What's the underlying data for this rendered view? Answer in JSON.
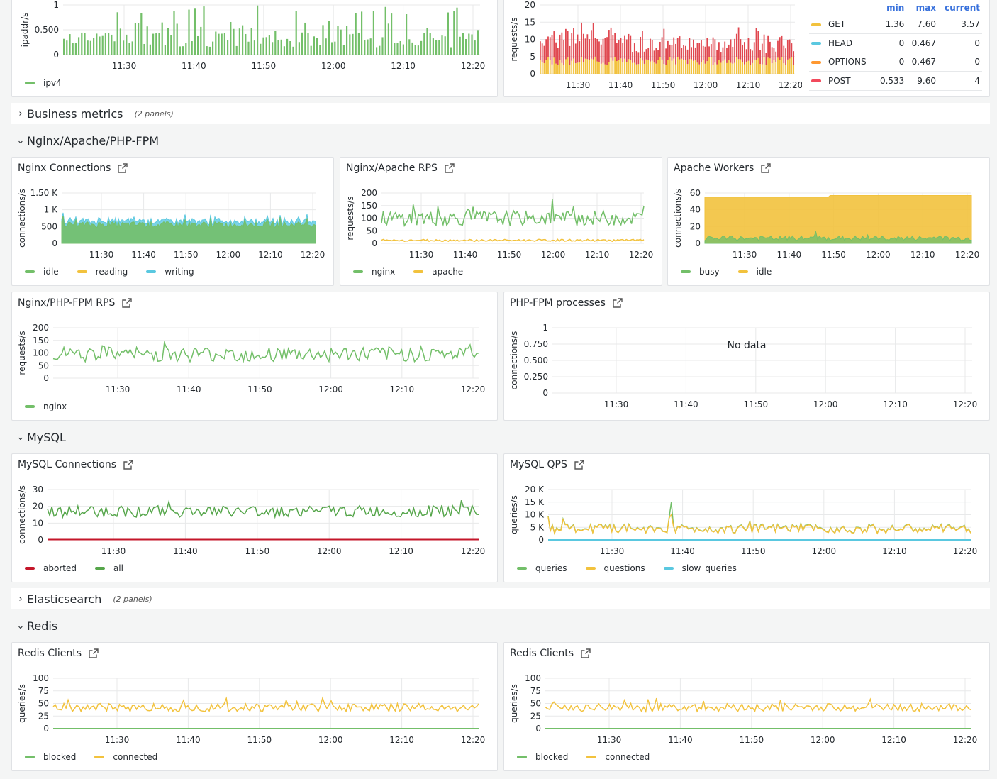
{
  "panels": {
    "ipaddr": {
      "ylabel": "ipaddr/s",
      "yticks": [
        "1",
        "0.500",
        "0"
      ],
      "xticks": [
        "11:30",
        "11:40",
        "11:50",
        "12:00",
        "12:10",
        "12:20"
      ],
      "legend": [
        {
          "name": "ipv4",
          "color": "#73bf69"
        }
      ]
    },
    "http_methods": {
      "ylabel": "requests/s",
      "yticks": [
        "20",
        "15",
        "10",
        "5",
        "0"
      ],
      "xticks": [
        "11:30",
        "11:40",
        "11:50",
        "12:00",
        "12:10",
        "12:20"
      ],
      "table_headers": {
        "min": "min",
        "max": "max",
        "current": "current"
      },
      "rows": [
        {
          "name": "GET",
          "color": "#f2c23d",
          "min": "1.36",
          "max": "7.60",
          "current": "3.57"
        },
        {
          "name": "HEAD",
          "color": "#5ac8e0",
          "min": "0",
          "max": "0.467",
          "current": "0"
        },
        {
          "name": "OPTIONS",
          "color": "#ff9830",
          "min": "0",
          "max": "0.467",
          "current": "0"
        },
        {
          "name": "POST",
          "color": "#f2495c",
          "min": "0.533",
          "max": "9.60",
          "current": "4"
        }
      ]
    },
    "nginx_conn": {
      "title": "Nginx Connections",
      "ylabel": "connections/s",
      "yticks": [
        "1.50 K",
        "1 K",
        "500",
        "0"
      ],
      "xticks": [
        "11:30",
        "11:40",
        "11:50",
        "12:00",
        "12:10",
        "12:20"
      ],
      "legend": [
        {
          "name": "idle",
          "color": "#73bf69"
        },
        {
          "name": "reading",
          "color": "#f2c23d"
        },
        {
          "name": "writing",
          "color": "#5ac8e0"
        }
      ]
    },
    "nginx_apache_rps": {
      "title": "Nginx/Apache RPS",
      "ylabel": "requests/s",
      "yticks": [
        "200",
        "150",
        "100",
        "50",
        "0"
      ],
      "xticks": [
        "11:30",
        "11:40",
        "11:50",
        "12:00",
        "12:10",
        "12:20"
      ],
      "legend": [
        {
          "name": "nginx",
          "color": "#73bf69"
        },
        {
          "name": "apache",
          "color": "#f2c23d"
        }
      ]
    },
    "apache_workers": {
      "title": "Apache Workers",
      "ylabel": "connections/s",
      "yticks": [
        "60",
        "40",
        "20",
        "0"
      ],
      "xticks": [
        "11:30",
        "11:40",
        "11:50",
        "12:00",
        "12:10",
        "12:20"
      ],
      "legend": [
        {
          "name": "busy",
          "color": "#73bf69"
        },
        {
          "name": "idle",
          "color": "#f2c23d"
        }
      ]
    },
    "nginx_phpfpm_rps": {
      "title": "Nginx/PHP-FPM RPS",
      "ylabel": "requests/s",
      "yticks": [
        "200",
        "150",
        "100",
        "50",
        "0"
      ],
      "xticks": [
        "11:30",
        "11:40",
        "11:50",
        "12:00",
        "12:10",
        "12:20"
      ],
      "legend": [
        {
          "name": "nginx",
          "color": "#73bf69"
        }
      ]
    },
    "phpfpm_processes": {
      "title": "PHP-FPM processes",
      "ylabel": "connections/s",
      "yticks": [
        "1",
        "0.750",
        "0.500",
        "0.250",
        "0"
      ],
      "xticks": [
        "11:30",
        "11:40",
        "11:50",
        "12:00",
        "12:10",
        "12:20"
      ],
      "nodata": "No data"
    },
    "mysql_conn": {
      "title": "MySQL Connections",
      "ylabel": "connections/s",
      "yticks": [
        "30",
        "20",
        "10",
        "0"
      ],
      "xticks": [
        "11:30",
        "11:40",
        "11:50",
        "12:00",
        "12:10",
        "12:20"
      ],
      "legend": [
        {
          "name": "aborted",
          "color": "#c4162a"
        },
        {
          "name": "all",
          "color": "#56a64b"
        }
      ]
    },
    "mysql_qps": {
      "title": "MySQL QPS",
      "ylabel": "queries/s",
      "yticks": [
        "20 K",
        "15 K",
        "10 K",
        "5 K",
        "0"
      ],
      "xticks": [
        "11:30",
        "11:40",
        "11:50",
        "12:00",
        "12:10",
        "12:20"
      ],
      "legend": [
        {
          "name": "queries",
          "color": "#73bf69"
        },
        {
          "name": "questions",
          "color": "#f2c23d"
        },
        {
          "name": "slow_queries",
          "color": "#5ac8e0"
        }
      ]
    },
    "redis_clients_1": {
      "title": "Redis Clients",
      "ylabel": "queries/s",
      "yticks": [
        "100",
        "75",
        "50",
        "25",
        "0"
      ],
      "xticks": [
        "11:30",
        "11:40",
        "11:50",
        "12:00",
        "12:10",
        "12:20"
      ],
      "legend": [
        {
          "name": "blocked",
          "color": "#73bf69"
        },
        {
          "name": "connected",
          "color": "#f2c23d"
        }
      ]
    },
    "redis_clients_2": {
      "title": "Redis Clients",
      "ylabel": "queries/s",
      "yticks": [
        "100",
        "75",
        "50",
        "25",
        "0"
      ],
      "xticks": [
        "11:30",
        "11:40",
        "11:50",
        "12:00",
        "12:10",
        "12:20"
      ],
      "legend": [
        {
          "name": "blocked",
          "color": "#73bf69"
        },
        {
          "name": "connected",
          "color": "#f2c23d"
        }
      ]
    }
  },
  "rows": {
    "business": {
      "title": "Business metrics",
      "count": "(2 panels)"
    },
    "nginx": {
      "title": "Nginx/Apache/PHP-FPM"
    },
    "mysql": {
      "title": "MySQL"
    },
    "elastic": {
      "title": "Elasticsearch",
      "count": "(2 panels)"
    },
    "redis": {
      "title": "Redis"
    }
  }
}
